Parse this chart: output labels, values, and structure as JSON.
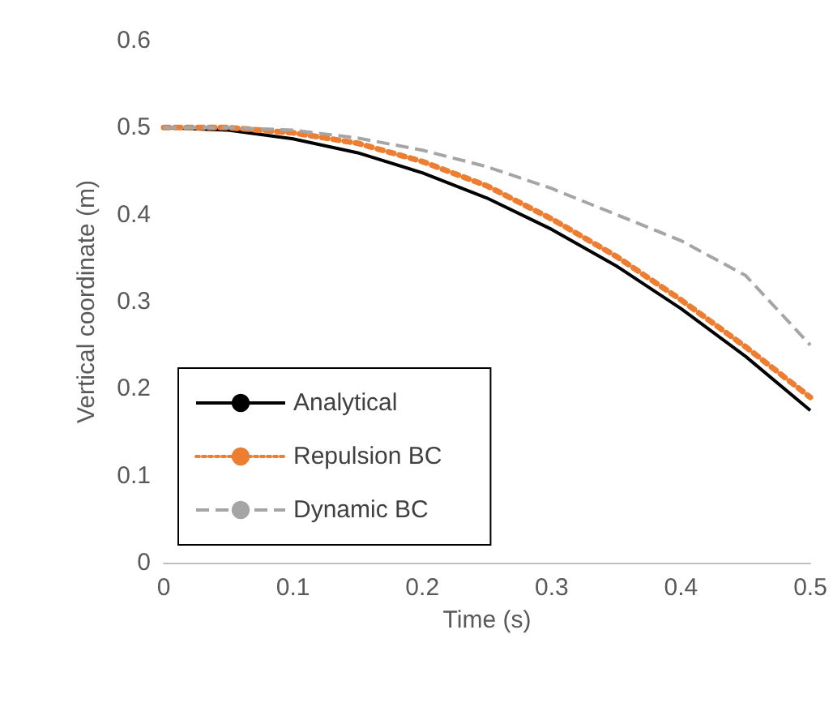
{
  "chart_data": {
    "type": "line",
    "xlabel": "Time (s)",
    "ylabel": "Vertical coordinate (m)",
    "x": [
      0,
      0.05,
      0.1,
      0.15,
      0.2,
      0.25,
      0.3,
      0.35,
      0.4,
      0.45,
      0.5
    ],
    "series": [
      {
        "name": "Analytical",
        "color": "#000000",
        "line_style": "solid",
        "values": [
          0.5,
          0.497,
          0.487,
          0.471,
          0.448,
          0.419,
          0.383,
          0.341,
          0.292,
          0.237,
          0.175
        ]
      },
      {
        "name": "Repulsion BC",
        "color": "#ed7d31",
        "line_style": "dotted",
        "values": [
          0.5,
          0.5,
          0.494,
          0.482,
          0.461,
          0.433,
          0.395,
          0.352,
          0.302,
          0.248,
          0.19
        ]
      },
      {
        "name": "Dynamic BC",
        "color": "#a5a5a5",
        "line_style": "dashed",
        "values": [
          0.5,
          0.5,
          0.497,
          0.488,
          0.474,
          0.455,
          0.43,
          0.4,
          0.37,
          0.33,
          0.25
        ]
      }
    ],
    "xlim": [
      0,
      0.5
    ],
    "xticks": [
      0,
      0.1,
      0.2,
      0.3,
      0.4,
      0.5
    ],
    "ylim": [
      0,
      0.6
    ],
    "yticks": [
      0,
      0.1,
      0.2,
      0.3,
      0.4,
      0.5,
      0.6
    ],
    "grid": false,
    "legend": "bottom left",
    "marker": "none"
  }
}
